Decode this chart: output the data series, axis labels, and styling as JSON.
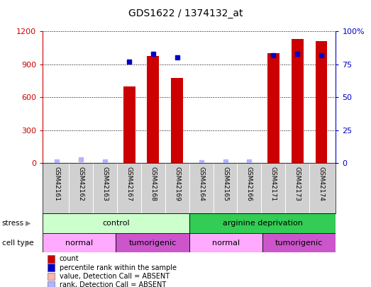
{
  "title": "GDS1622 / 1374132_at",
  "samples": [
    "GSM42161",
    "GSM42162",
    "GSM42163",
    "GSM42167",
    "GSM42168",
    "GSM42169",
    "GSM42164",
    "GSM42165",
    "GSM42166",
    "GSM42171",
    "GSM42173",
    "GSM42174"
  ],
  "count_values": [
    0,
    0,
    0,
    700,
    975,
    775,
    0,
    0,
    0,
    1000,
    1130,
    1110
  ],
  "rank_values": [
    1.5,
    3.0,
    1.5,
    77,
    83,
    80,
    1.0,
    1.5,
    1.5,
    82,
    83,
    82
  ],
  "absent_count": [
    true,
    true,
    true,
    false,
    false,
    false,
    true,
    true,
    true,
    false,
    false,
    false
  ],
  "absent_rank": [
    true,
    true,
    true,
    false,
    false,
    false,
    true,
    true,
    true,
    false,
    false,
    false
  ],
  "count_color": "#cc0000",
  "rank_color": "#0000cc",
  "absent_count_color": "#ffb3b3",
  "absent_rank_color": "#b3b3ff",
  "ylim_left": [
    0,
    1200
  ],
  "ylim_right": [
    0,
    100
  ],
  "yticks_left": [
    0,
    300,
    600,
    900,
    1200
  ],
  "yticks_right": [
    0,
    25,
    50,
    75,
    100
  ],
  "ytick_labels_right": [
    "0",
    "25",
    "50",
    "75",
    "100%"
  ],
  "stress_groups": [
    {
      "label": "control",
      "start": 0,
      "end": 6,
      "color": "#ccffcc"
    },
    {
      "label": "arginine deprivation",
      "start": 6,
      "end": 12,
      "color": "#33cc55"
    }
  ],
  "celltype_groups": [
    {
      "label": "normal",
      "start": 0,
      "end": 3,
      "color": "#ffaaff"
    },
    {
      "label": "tumorigenic",
      "start": 3,
      "end": 6,
      "color": "#cc55cc"
    },
    {
      "label": "normal",
      "start": 6,
      "end": 9,
      "color": "#ffaaff"
    },
    {
      "label": "tumorigenic",
      "start": 9,
      "end": 12,
      "color": "#cc55cc"
    }
  ],
  "bg_color": "#ffffff",
  "bar_width": 0.5,
  "rank_marker_size": 5,
  "legend_items": [
    {
      "label": "count",
      "color": "#cc0000"
    },
    {
      "label": "percentile rank within the sample",
      "color": "#0000cc"
    },
    {
      "label": "value, Detection Call = ABSENT",
      "color": "#ffb3b3"
    },
    {
      "label": "rank, Detection Call = ABSENT",
      "color": "#b3b3ff"
    }
  ]
}
